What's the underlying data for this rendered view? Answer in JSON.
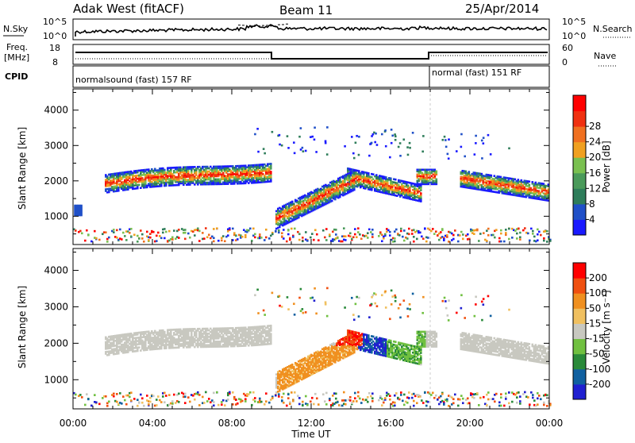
{
  "header": {
    "station": "Adak West (fitACF)",
    "beam": "Beam 11",
    "date": "25/Apr/2014"
  },
  "nsky_panel": {
    "left_label": "N.Sky",
    "right_label": "N.Search",
    "left_ticks": [
      "10^5",
      "10^0"
    ],
    "right_ticks": [
      "10^5",
      "10^0"
    ]
  },
  "freq_panel": {
    "left_label_1": "Freq.",
    "left_label_2": "[MHz]",
    "right_label": "Nave",
    "left_ticks": [
      "18",
      "8"
    ],
    "right_ticks": [
      "60",
      "0"
    ]
  },
  "cpid_panel": {
    "label": "CPID",
    "mode_1": "normalsound (fast) 157 RF",
    "mode_2": "normal (fast) 151 RF"
  },
  "colors": {
    "power": [
      "#1a1aff",
      "#2050c8",
      "#2e7d5a",
      "#4a9a5a",
      "#7ac050",
      "#f0a020",
      "#f07020",
      "#f03010",
      "#ff0000"
    ],
    "velocity": [
      "#2020d0",
      "#1060a0",
      "#2a8a3a",
      "#70c040",
      "#c8c8c0",
      "#f0c060",
      "#f09020",
      "#f05010",
      "#ff0000"
    ]
  },
  "chart_data": [
    {
      "type": "heatmap",
      "name": "power",
      "ylabel": "Slant Range [km]",
      "xlabel": "",
      "yticks": [
        "1000",
        "2000",
        "3000",
        "4000"
      ],
      "ylim": [
        200,
        4600
      ],
      "xlim": [
        0,
        24
      ],
      "colorbar_label": "Power [dB]",
      "colorbar_ticks": [
        "4",
        "8",
        "12",
        "16",
        "20",
        "24",
        "28"
      ],
      "colorbar_range": [
        0,
        32
      ]
    },
    {
      "type": "heatmap",
      "name": "velocity",
      "ylabel": "Slant Range [km]",
      "xlabel": "Time UT",
      "yticks": [
        "1000",
        "2000",
        "3000",
        "4000"
      ],
      "xticks": [
        "00:00",
        "04:00",
        "08:00",
        "12:00",
        "16:00",
        "20:00",
        "00:00"
      ],
      "ylim": [
        200,
        4600
      ],
      "xlim": [
        0,
        24
      ],
      "colorbar_label": "Velocity [m s⁻¹]",
      "colorbar_ticks": [
        "200",
        "100",
        "50",
        "15",
        "-15",
        "-50",
        "-100",
        "-200"
      ]
    }
  ]
}
